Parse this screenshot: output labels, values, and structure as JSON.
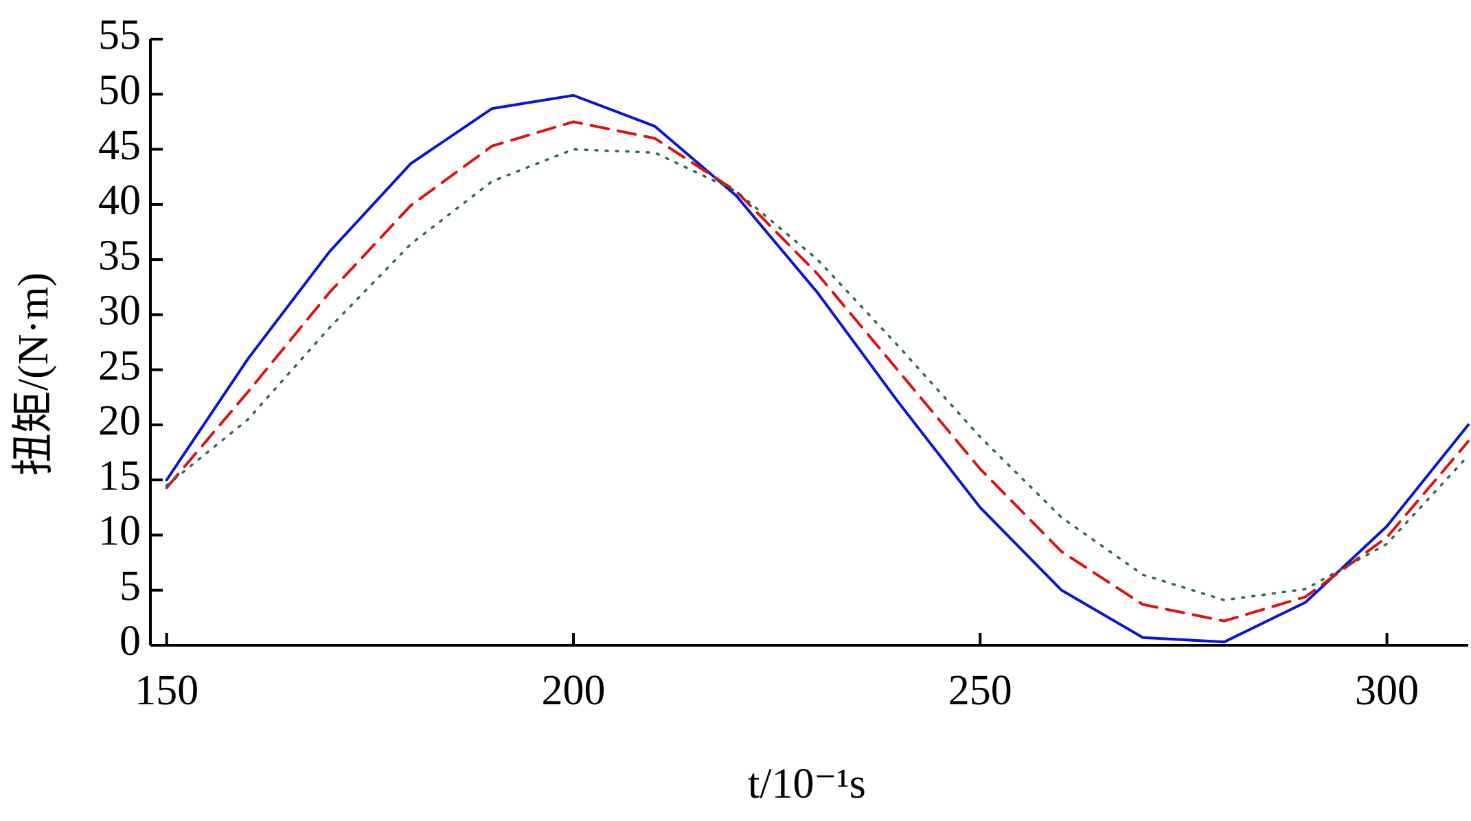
{
  "chart_data": {
    "type": "line",
    "x_label": "t/10⁻¹s",
    "y_label": "扭矩/(N·m)",
    "x": [
      150,
      160,
      170,
      180,
      190,
      200,
      210,
      220,
      230,
      240,
      250,
      260,
      270,
      280,
      290,
      300,
      310
    ],
    "series": [
      {
        "color": "#0a14d6",
        "style": "solid",
        "values": [
          15.0,
          26.0,
          35.7,
          43.7,
          48.7,
          49.9,
          47.1,
          40.8,
          32.0,
          22.0,
          12.5,
          5.0,
          0.7,
          0.3,
          3.9,
          10.8,
          20.0
        ]
      },
      {
        "color": "#e01010",
        "style": "dashed",
        "values": [
          14.3,
          23.0,
          32.0,
          39.9,
          45.3,
          47.5,
          46.0,
          41.2,
          33.7,
          24.85,
          16.0,
          8.5,
          3.7,
          2.2,
          4.4,
          9.8,
          18.5
        ]
      },
      {
        "color": "#2e6b4a",
        "style": "dotted",
        "values": [
          14.5,
          20.5,
          28.8,
          36.4,
          42.1,
          45.0,
          44.7,
          41.2,
          35.0,
          27.1,
          18.9,
          11.6,
          6.4,
          4.1,
          5.1,
          9.2,
          17.2
        ]
      }
    ],
    "xlim": [
      148,
      310
    ],
    "xticks": [
      150,
      200,
      250,
      300
    ],
    "ylim": [
      0,
      55
    ],
    "yticks": [
      0,
      5,
      10,
      15,
      20,
      25,
      30,
      35,
      40,
      45,
      50,
      55
    ],
    "grid": false
  }
}
